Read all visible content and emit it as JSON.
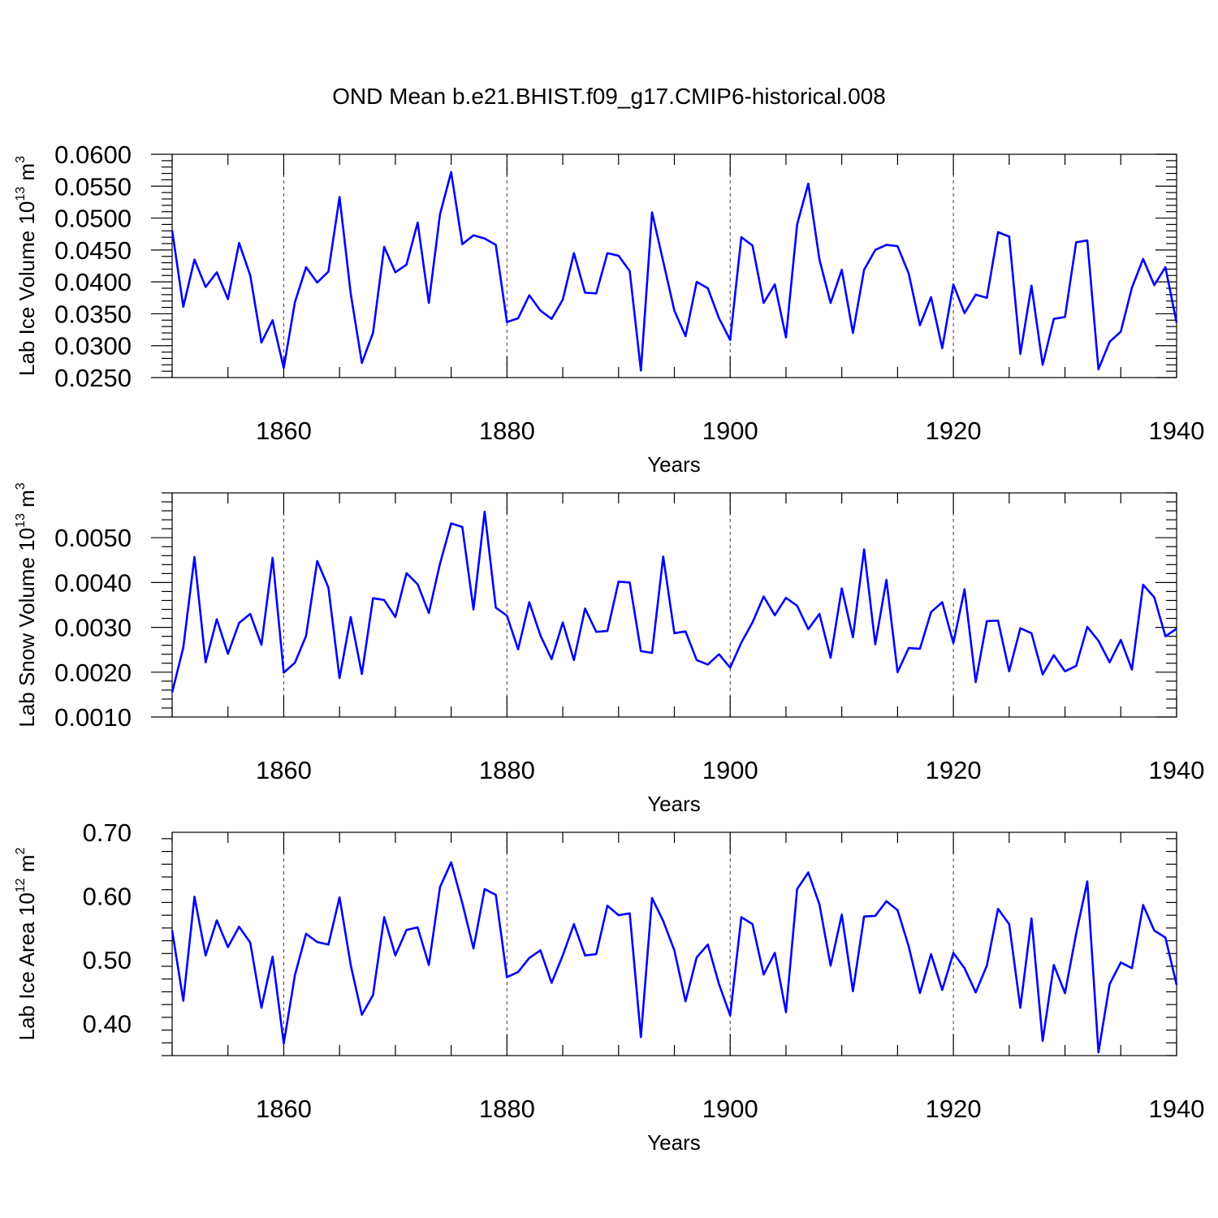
{
  "title": "OND Mean b.e21.BHIST.f09_g17.CMIP6-historical.008",
  "colors": {
    "series": "#0000ff",
    "axis": "#000000",
    "background": "#ffffff"
  },
  "chart_data": [
    {
      "type": "line",
      "ylabel": {
        "prefix": "Lab Ice Volume 10",
        "sup1": "13",
        "mid": " m",
        "sup2": "3"
      },
      "xlabel": "Years",
      "xlim": [
        1850,
        1940
      ],
      "ylim": [
        0.025,
        0.06
      ],
      "xticks": [
        "1860",
        "1880",
        "1900",
        "1920",
        "1940"
      ],
      "yticks": [
        "0.0250",
        "0.0300",
        "0.0350",
        "0.0400",
        "0.0450",
        "0.0500",
        "0.0550",
        "0.0600"
      ],
      "grid": "dashed vertical lines at 1860, 1880, 1900, 1920",
      "x": [
        1850,
        1851,
        1852,
        1853,
        1854,
        1855,
        1856,
        1857,
        1858,
        1859,
        1860,
        1861,
        1862,
        1863,
        1864,
        1865,
        1866,
        1867,
        1868,
        1869,
        1870,
        1871,
        1872,
        1873,
        1874,
        1875,
        1876,
        1877,
        1878,
        1879,
        1880,
        1881,
        1882,
        1883,
        1884,
        1885,
        1886,
        1887,
        1888,
        1889,
        1890,
        1891,
        1892,
        1893,
        1894,
        1895,
        1896,
        1897,
        1898,
        1899,
        1900,
        1901,
        1902,
        1903,
        1904,
        1905,
        1906,
        1907,
        1908,
        1909,
        1910,
        1911,
        1912,
        1913,
        1914,
        1915,
        1916,
        1917,
        1918,
        1919,
        1920,
        1921,
        1922,
        1923,
        1924,
        1925,
        1926,
        1927,
        1928,
        1929,
        1930,
        1931,
        1932,
        1933,
        1934,
        1935,
        1936,
        1937,
        1938,
        1939,
        1940
      ],
      "values": [
        0.0481,
        0.0361,
        0.0435,
        0.0392,
        0.0415,
        0.0373,
        0.0461,
        0.041,
        0.0305,
        0.034,
        0.0265,
        0.0368,
        0.0423,
        0.0399,
        0.0416,
        0.0533,
        0.0382,
        0.0273,
        0.032,
        0.0455,
        0.0415,
        0.0427,
        0.0493,
        0.0367,
        0.0506,
        0.0572,
        0.0459,
        0.0473,
        0.0468,
        0.0458,
        0.0337,
        0.0343,
        0.0379,
        0.0355,
        0.0342,
        0.0372,
        0.0445,
        0.0383,
        0.0382,
        0.0445,
        0.0441,
        0.0417,
        0.0261,
        0.0509,
        0.0432,
        0.0355,
        0.0315,
        0.04,
        0.039,
        0.0343,
        0.0309,
        0.047,
        0.0457,
        0.0367,
        0.0396,
        0.0313,
        0.049,
        0.0554,
        0.0435,
        0.0367,
        0.0419,
        0.032,
        0.0419,
        0.045,
        0.0458,
        0.0456,
        0.0413,
        0.0332,
        0.0376,
        0.0296,
        0.0396,
        0.0351,
        0.038,
        0.0375,
        0.0478,
        0.0471,
        0.0287,
        0.0394,
        0.027,
        0.0342,
        0.0345,
        0.0462,
        0.0465,
        0.0263,
        0.0306,
        0.0322,
        0.0391,
        0.0436,
        0.0395,
        0.0423,
        0.0336
      ]
    },
    {
      "type": "line",
      "ylabel": {
        "prefix": "Lab Snow Volume 10",
        "sup1": "13",
        "mid": " m",
        "sup2": "3"
      },
      "xlabel": "Years",
      "xlim": [
        1850,
        1940
      ],
      "ylim": [
        0.001,
        0.006
      ],
      "xticks": [
        "1860",
        "1880",
        "1900",
        "1920",
        "1940"
      ],
      "yticks": [
        "0.0010",
        "0.0020",
        "0.0030",
        "0.0040",
        "0.0050"
      ],
      "grid": "dashed vertical lines at 1860, 1880, 1900, 1920",
      "x": [
        1850,
        1851,
        1852,
        1853,
        1854,
        1855,
        1856,
        1857,
        1858,
        1859,
        1860,
        1861,
        1862,
        1863,
        1864,
        1865,
        1866,
        1867,
        1868,
        1869,
        1870,
        1871,
        1872,
        1873,
        1874,
        1875,
        1876,
        1877,
        1878,
        1879,
        1880,
        1881,
        1882,
        1883,
        1884,
        1885,
        1886,
        1887,
        1888,
        1889,
        1890,
        1891,
        1892,
        1893,
        1894,
        1895,
        1896,
        1897,
        1898,
        1899,
        1900,
        1901,
        1902,
        1903,
        1904,
        1905,
        1906,
        1907,
        1908,
        1909,
        1910,
        1911,
        1912,
        1913,
        1914,
        1915,
        1916,
        1917,
        1918,
        1919,
        1920,
        1921,
        1922,
        1923,
        1924,
        1925,
        1926,
        1927,
        1928,
        1929,
        1930,
        1931,
        1932,
        1933,
        1934,
        1935,
        1936,
        1937,
        1938,
        1939,
        1940
      ],
      "values": [
        0.00155,
        0.00255,
        0.00457,
        0.00222,
        0.00318,
        0.00241,
        0.0031,
        0.0033,
        0.00261,
        0.00455,
        0.00199,
        0.00221,
        0.00281,
        0.00448,
        0.00389,
        0.00187,
        0.00323,
        0.00196,
        0.00365,
        0.00361,
        0.00323,
        0.00421,
        0.00396,
        0.00332,
        0.00442,
        0.00532,
        0.00524,
        0.0034,
        0.00558,
        0.00344,
        0.00326,
        0.00251,
        0.00356,
        0.00282,
        0.00229,
        0.00311,
        0.00227,
        0.00342,
        0.0029,
        0.00292,
        0.00402,
        0.004,
        0.00247,
        0.00243,
        0.00458,
        0.00287,
        0.00291,
        0.00227,
        0.00217,
        0.0024,
        0.0021,
        0.00266,
        0.00311,
        0.00369,
        0.00327,
        0.00366,
        0.00348,
        0.00296,
        0.0033,
        0.00232,
        0.00387,
        0.00278,
        0.00474,
        0.00262,
        0.00406,
        0.002,
        0.00254,
        0.00252,
        0.00334,
        0.00356,
        0.00265,
        0.00385,
        0.00178,
        0.00314,
        0.00315,
        0.00202,
        0.00298,
        0.00287,
        0.00195,
        0.00238,
        0.00202,
        0.00214,
        0.00301,
        0.0027,
        0.00222,
        0.00272,
        0.00206,
        0.00395,
        0.00367,
        0.0028,
        0.00297
      ]
    },
    {
      "type": "line",
      "ylabel": {
        "prefix": "Lab Ice Area 10",
        "sup1": "12",
        "mid": " m",
        "sup2": "2"
      },
      "xlabel": "Years",
      "xlim": [
        1850,
        1940
      ],
      "ylim": [
        0.35,
        0.7
      ],
      "xticks": [
        "1860",
        "1880",
        "1900",
        "1920",
        "1940"
      ],
      "yticks": [
        "0.40",
        "0.50",
        "0.60",
        "0.70"
      ],
      "grid": "dashed vertical lines at 1860, 1880, 1900, 1920",
      "x": [
        1850,
        1851,
        1852,
        1853,
        1854,
        1855,
        1856,
        1857,
        1858,
        1859,
        1860,
        1861,
        1862,
        1863,
        1864,
        1865,
        1866,
        1867,
        1868,
        1869,
        1870,
        1871,
        1872,
        1873,
        1874,
        1875,
        1876,
        1877,
        1878,
        1879,
        1880,
        1881,
        1882,
        1883,
        1884,
        1885,
        1886,
        1887,
        1888,
        1889,
        1890,
        1891,
        1892,
        1893,
        1894,
        1895,
        1896,
        1897,
        1898,
        1899,
        1900,
        1901,
        1902,
        1903,
        1904,
        1905,
        1906,
        1907,
        1908,
        1909,
        1910,
        1911,
        1912,
        1913,
        1914,
        1915,
        1916,
        1917,
        1918,
        1919,
        1920,
        1921,
        1922,
        1923,
        1924,
        1925,
        1926,
        1927,
        1928,
        1929,
        1930,
        1931,
        1932,
        1933,
        1934,
        1935,
        1936,
        1937,
        1938,
        1939,
        1940
      ],
      "values": [
        0.546,
        0.436,
        0.599,
        0.507,
        0.562,
        0.52,
        0.552,
        0.527,
        0.425,
        0.505,
        0.369,
        0.476,
        0.541,
        0.528,
        0.524,
        0.598,
        0.492,
        0.414,
        0.445,
        0.567,
        0.507,
        0.547,
        0.551,
        0.492,
        0.614,
        0.653,
        0.589,
        0.518,
        0.611,
        0.602,
        0.473,
        0.481,
        0.503,
        0.515,
        0.464,
        0.507,
        0.556,
        0.507,
        0.509,
        0.585,
        0.57,
        0.573,
        0.379,
        0.597,
        0.561,
        0.515,
        0.435,
        0.504,
        0.524,
        0.462,
        0.413,
        0.567,
        0.556,
        0.477,
        0.511,
        0.418,
        0.611,
        0.637,
        0.587,
        0.491,
        0.571,
        0.451,
        0.568,
        0.569,
        0.592,
        0.578,
        0.521,
        0.448,
        0.509,
        0.453,
        0.511,
        0.487,
        0.449,
        0.491,
        0.58,
        0.556,
        0.425,
        0.565,
        0.373,
        0.492,
        0.448,
        0.541,
        0.623,
        0.355,
        0.462,
        0.496,
        0.487,
        0.586,
        0.546,
        0.535,
        0.461
      ]
    }
  ]
}
